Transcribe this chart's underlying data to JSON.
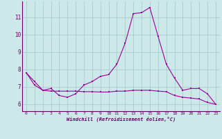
{
  "xlabel": "Windchill (Refroidissement éolien,°C)",
  "bg_color": "#cce8e8",
  "line_color": "#990099",
  "grid_color": "#aacccc",
  "axis_color": "#660066",
  "series1": [
    7.8,
    7.3,
    6.8,
    6.9,
    6.5,
    6.4,
    6.6,
    7.1,
    7.3,
    7.6,
    7.7,
    8.3,
    9.5,
    11.2,
    11.25,
    11.55,
    9.9,
    8.3,
    7.5,
    6.8,
    6.9,
    6.9,
    6.6,
    6.0
  ],
  "series2": [
    7.8,
    7.1,
    6.8,
    6.75,
    6.75,
    6.75,
    6.75,
    6.72,
    6.72,
    6.7,
    6.7,
    6.75,
    6.75,
    6.8,
    6.8,
    6.8,
    6.75,
    6.72,
    6.5,
    6.4,
    6.35,
    6.3,
    6.1,
    6.0
  ],
  "yticks": [
    6,
    7,
    8,
    9,
    10,
    11
  ],
  "xticks": [
    0,
    1,
    2,
    3,
    4,
    5,
    6,
    7,
    8,
    9,
    10,
    11,
    12,
    13,
    14,
    15,
    16,
    17,
    18,
    19,
    20,
    21,
    22,
    23
  ],
  "ylim": [
    5.6,
    11.9
  ],
  "xlim": [
    -0.5,
    23.5
  ]
}
